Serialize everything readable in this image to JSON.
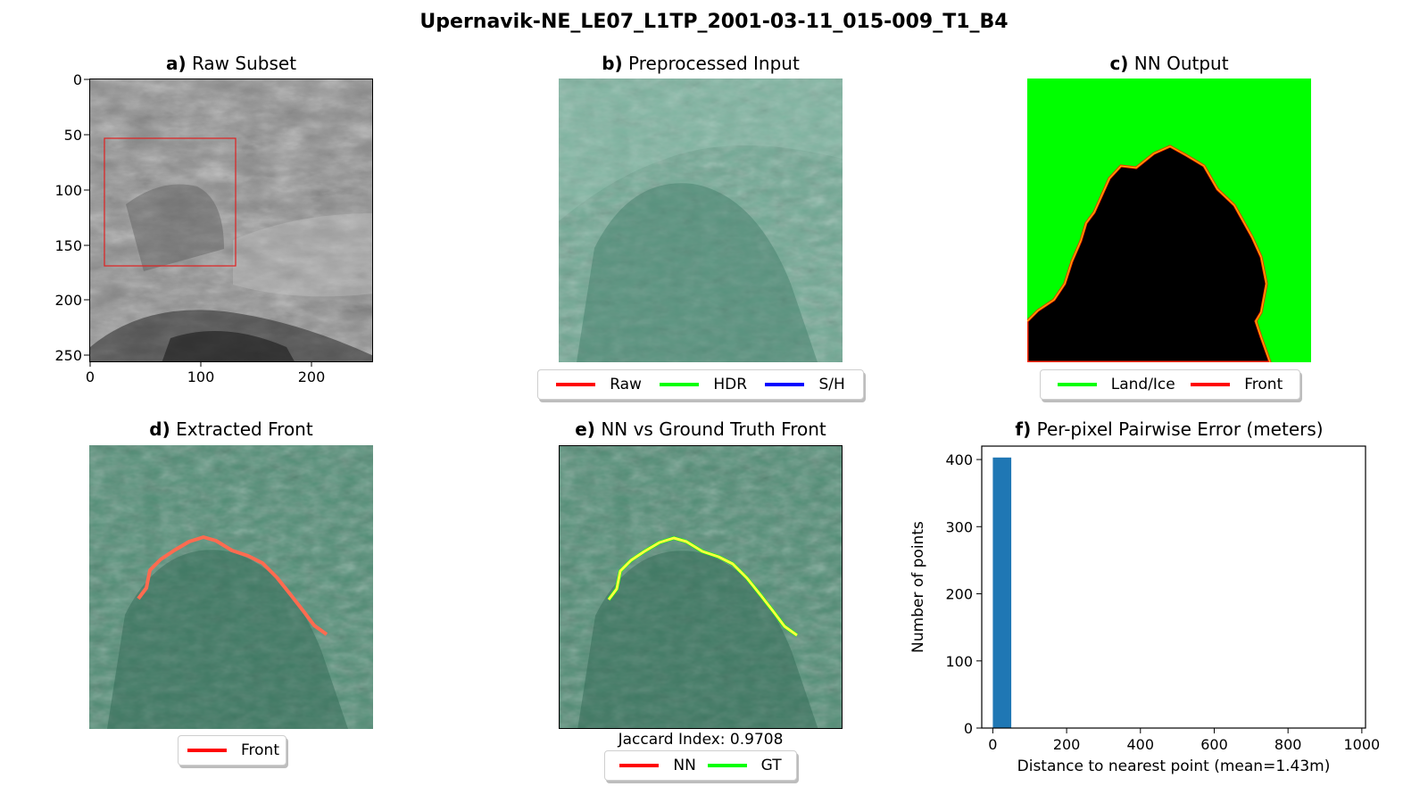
{
  "figure": {
    "suptitle": "Upernavik-NE_LE07_L1TP_2001-03-11_015-009_T1_B4"
  },
  "panels": {
    "a": {
      "letter": "a)",
      "title": "Raw Subset",
      "xticks": [
        "0",
        "100",
        "200"
      ],
      "yticks": [
        "0",
        "50",
        "100",
        "150",
        "200",
        "250"
      ]
    },
    "b": {
      "letter": "b)",
      "title": "Preprocessed Input",
      "legend": [
        {
          "label": "Raw",
          "color": "#ff0000"
        },
        {
          "label": "HDR",
          "color": "#00ff00"
        },
        {
          "label": "S/H",
          "color": "#0000ff"
        }
      ]
    },
    "c": {
      "letter": "c)",
      "title": "NN Output",
      "legend": [
        {
          "label": "Land/Ice",
          "color": "#00ff00"
        },
        {
          "label": "Front",
          "color": "#ff0000"
        }
      ]
    },
    "d": {
      "letter": "d)",
      "title": "Extracted Front",
      "legend": [
        {
          "label": "Front",
          "color": "#ff0000"
        }
      ]
    },
    "e": {
      "letter": "e)",
      "title": "NN vs Ground Truth Front",
      "caption": "Jaccard Index: 0.9708",
      "legend": [
        {
          "label": "NN",
          "color": "#ff0000"
        },
        {
          "label": "GT",
          "color": "#00ff00"
        }
      ]
    },
    "f": {
      "letter": "f)",
      "title": "Per-pixel Pairwise Error (meters)"
    }
  },
  "chart_data": {
    "type": "bar",
    "title": "Per-pixel Pairwise Error (meters)",
    "xlabel": "Distance to nearest point (mean=1.43m)",
    "ylabel": "Number of points",
    "xlim": [
      -30,
      1010
    ],
    "ylim": [
      0,
      420
    ],
    "xticks": [
      0,
      200,
      400,
      600,
      800,
      1000
    ],
    "yticks": [
      0,
      100,
      200,
      300,
      400
    ],
    "bins": [
      {
        "x0": 0,
        "x1": 50,
        "count": 403
      }
    ],
    "bar_color": "#1f77b4"
  }
}
